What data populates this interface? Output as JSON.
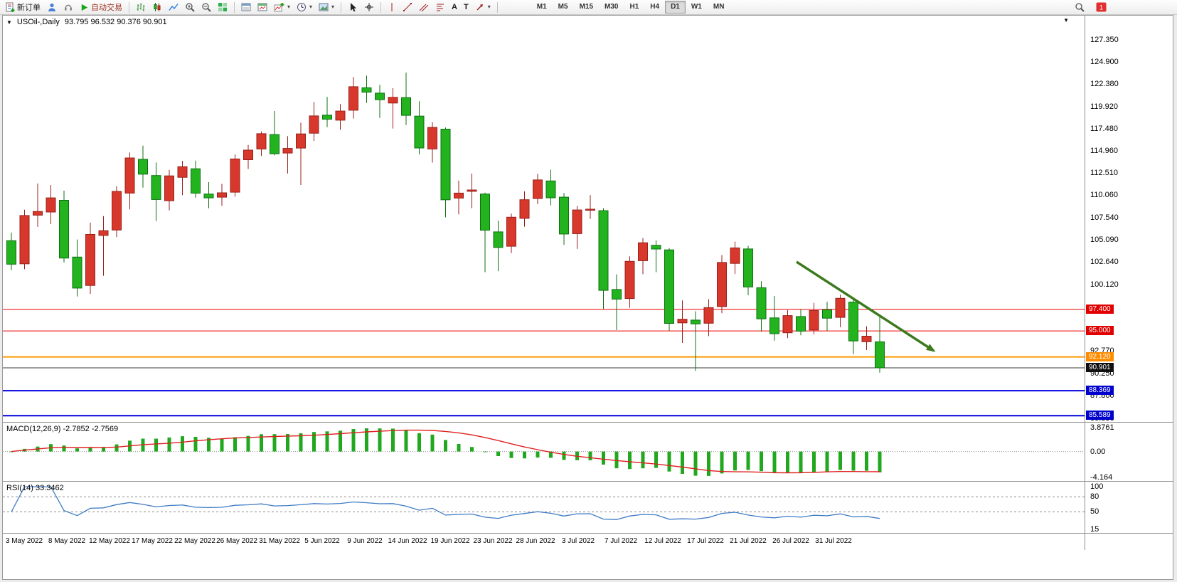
{
  "toolbar": {
    "new_order": "新订单",
    "autotrade": "自动交易",
    "text_tool_a": "A",
    "text_tool_t": "T",
    "timeframes": [
      "M1",
      "M5",
      "M15",
      "M30",
      "H1",
      "H4",
      "D1",
      "W1",
      "MN"
    ],
    "active_timeframe": "D1",
    "notification_count": "1"
  },
  "icons": {
    "dropdown": "▾",
    "collapse": "▼"
  },
  "chart": {
    "symbol_title": "USOil-,Daily",
    "ohlc_text": "93.795 96.532 90.376 90.901",
    "price_axis": {
      "ticks": [
        {
          "value": 127.35,
          "label": "127.350"
        },
        {
          "value": 124.9,
          "label": "124.900"
        },
        {
          "value": 122.38,
          "label": "122.380"
        },
        {
          "value": 119.92,
          "label": "119.920"
        },
        {
          "value": 117.48,
          "label": "117.480"
        },
        {
          "value": 114.96,
          "label": "114.960"
        },
        {
          "value": 112.51,
          "label": "112.510"
        },
        {
          "value": 110.06,
          "label": "110.060"
        },
        {
          "value": 107.54,
          "label": "107.540"
        },
        {
          "value": 105.09,
          "label": "105.090"
        },
        {
          "value": 102.64,
          "label": "102.640"
        },
        {
          "value": 100.12,
          "label": "100.120"
        },
        {
          "value": 92.77,
          "label": "92.770"
        },
        {
          "value": 90.25,
          "label": "90.250"
        },
        {
          "value": 87.8,
          "label": "87.800"
        },
        {
          "value": 85.33,
          "label": "85.330"
        }
      ]
    },
    "levels": [
      {
        "value": 97.4,
        "label": "97.400",
        "color": "#f20000",
        "badge": "#e00000",
        "width": 1
      },
      {
        "value": 95.0,
        "label": "95.000",
        "color": "#f20000",
        "badge": "#e00000",
        "width": 1
      },
      {
        "value": 92.12,
        "label": "92.120",
        "color": "#ff9a00",
        "badge": "#ff8c00",
        "width": 2
      },
      {
        "value": 90.901,
        "label": "90.901",
        "color": "#3c3c3c",
        "badge": "#101010",
        "width": 1
      },
      {
        "value": 88.369,
        "label": "88.369",
        "color": "#0000e0",
        "badge": "#0000cc",
        "width": 2
      },
      {
        "value": 85.589,
        "label": "85.589",
        "color": "#0000e0",
        "badge": "#0000cc",
        "width": 2
      }
    ],
    "arrow": {
      "from_bar": 59.7,
      "from_price": 102.7,
      "to_bar": 70.1,
      "to_price": 92.8,
      "color": "#3c7a1e"
    },
    "colors": {
      "bull": "#d8372c",
      "bull_dark": "#97211a",
      "bear": "#22b31f",
      "bear_dark": "#0e7010",
      "macd_bar": "#22a81f",
      "macd_signal": "#e02020",
      "rsi_line": "#3f7bc4"
    }
  },
  "macd_panel": {
    "label": "MACD(12,26,9) -2.7852 -2.7569",
    "params": {
      "fast": 12,
      "slow": 26,
      "signal": 9
    },
    "current_macd": -2.7852,
    "current_signal": -2.7569,
    "ylim": [
      -4.8,
      4.7
    ],
    "axis": [
      {
        "value": 3.8761,
        "label": "3.8761"
      },
      {
        "value": 0,
        "label": "0.00"
      },
      {
        "value": -4.164,
        "label": "-4.164"
      }
    ]
  },
  "rsi_panel": {
    "label": "RSI(14) 33.3462",
    "period": 14,
    "current": 33.3462,
    "ylim": [
      8,
      110
    ],
    "levels": [
      80,
      50
    ],
    "axis": [
      {
        "value": 100,
        "label": "100"
      },
      {
        "value": 80,
        "label": "80"
      },
      {
        "value": 50,
        "label": "50"
      },
      {
        "value": 15,
        "label": "15"
      }
    ]
  },
  "date_axis": {
    "labels": [
      "3 May 2022",
      "8 May 2022",
      "12 May 2022",
      "17 May 2022",
      "22 May 2022",
      "26 May 2022",
      "31 May 2022",
      "5 Jun 2022",
      "9 Jun 2022",
      "14 Jun 2022",
      "19 Jun 2022",
      "23 Jun 2022",
      "28 Jun 2022",
      "3 Jul 2022",
      "7 Jul 2022",
      "12 Jul 2022",
      "17 Jul 2022",
      "21 Jul 2022",
      "26 Jul 2022",
      "31 Jul 2022"
    ]
  },
  "chart_data": {
    "type": "candlestick",
    "symbol": "USOil",
    "timeframe": "Daily",
    "title": "USOil-,Daily",
    "ylim": [
      84.9,
      130.0
    ],
    "color_convention": "china (red = up, green = down)",
    "dates": [
      "2022-05-03",
      "2022-05-04",
      "2022-05-05",
      "2022-05-06",
      "2022-05-09",
      "2022-05-10",
      "2022-05-11",
      "2022-05-12",
      "2022-05-13",
      "2022-05-16",
      "2022-05-17",
      "2022-05-18",
      "2022-05-19",
      "2022-05-20",
      "2022-05-23",
      "2022-05-24",
      "2022-05-25",
      "2022-05-26",
      "2022-05-27",
      "2022-05-30",
      "2022-05-31",
      "2022-06-01",
      "2022-06-02",
      "2022-06-03",
      "2022-06-06",
      "2022-06-07",
      "2022-06-08",
      "2022-06-09",
      "2022-06-10",
      "2022-06-13",
      "2022-06-14",
      "2022-06-15",
      "2022-06-16",
      "2022-06-17",
      "2022-06-20",
      "2022-06-21",
      "2022-06-22",
      "2022-06-23",
      "2022-06-24",
      "2022-06-27",
      "2022-06-28",
      "2022-06-29",
      "2022-06-30",
      "2022-07-01",
      "2022-07-04",
      "2022-07-05",
      "2022-07-06",
      "2022-07-07",
      "2022-07-08",
      "2022-07-11",
      "2022-07-12",
      "2022-07-13",
      "2022-07-14",
      "2022-07-15",
      "2022-07-18",
      "2022-07-19",
      "2022-07-20",
      "2022-07-21",
      "2022-07-22",
      "2022-07-25",
      "2022-07-26",
      "2022-07-27",
      "2022-07-28",
      "2022-07-29",
      "2022-08-01",
      "2022-08-02",
      "2022-08-03"
    ],
    "ohlc": [
      [
        105.02,
        105.92,
        101.75,
        102.41
      ],
      [
        102.45,
        108.45,
        101.85,
        107.81
      ],
      [
        107.85,
        111.37,
        106.55,
        108.26
      ],
      [
        108.2,
        111.2,
        106.85,
        109.77
      ],
      [
        109.5,
        110.58,
        102.6,
        103.09
      ],
      [
        103.2,
        105.15,
        98.82,
        99.76
      ],
      [
        100.05,
        107.02,
        99.12,
        105.71
      ],
      [
        105.6,
        107.75,
        101.12,
        106.13
      ],
      [
        106.2,
        111.06,
        105.42,
        110.49
      ],
      [
        110.3,
        114.82,
        108.5,
        114.2
      ],
      [
        114.05,
        115.56,
        110.92,
        112.4
      ],
      [
        112.25,
        113.7,
        107.2,
        109.59
      ],
      [
        109.45,
        112.88,
        108.38,
        112.21
      ],
      [
        112.05,
        113.88,
        110.07,
        113.23
      ],
      [
        113.0,
        113.9,
        109.8,
        110.29
      ],
      [
        110.2,
        111.52,
        108.61,
        109.77
      ],
      [
        109.85,
        111.33,
        108.88,
        110.33
      ],
      [
        110.4,
        114.6,
        109.92,
        114.09
      ],
      [
        114.0,
        115.66,
        112.98,
        115.07
      ],
      [
        115.2,
        117.14,
        114.42,
        116.9
      ],
      [
        116.8,
        119.42,
        114.5,
        114.67
      ],
      [
        114.75,
        116.62,
        112.47,
        115.26
      ],
      [
        115.3,
        118.12,
        111.2,
        116.87
      ],
      [
        116.95,
        120.42,
        116.1,
        118.87
      ],
      [
        118.95,
        120.99,
        117.62,
        118.5
      ],
      [
        118.4,
        120.19,
        117.32,
        119.41
      ],
      [
        119.5,
        123.18,
        118.58,
        122.11
      ],
      [
        122.0,
        123.34,
        120.32,
        121.51
      ],
      [
        121.4,
        122.32,
        118.65,
        120.67
      ],
      [
        120.3,
        121.95,
        117.47,
        120.93
      ],
      [
        120.9,
        123.68,
        117.86,
        118.93
      ],
      [
        118.85,
        120.5,
        114.6,
        115.31
      ],
      [
        115.2,
        118.17,
        113.68,
        117.59
      ],
      [
        117.4,
        117.58,
        107.61,
        109.56
      ],
      [
        109.75,
        111.7,
        107.95,
        110.3
      ],
      [
        110.5,
        112.47,
        108.63,
        110.65
      ],
      [
        110.2,
        110.36,
        101.53,
        106.19
      ],
      [
        106.0,
        107.25,
        101.62,
        104.27
      ],
      [
        104.4,
        108.02,
        103.64,
        107.62
      ],
      [
        107.5,
        110.5,
        106.57,
        109.57
      ],
      [
        109.7,
        112.45,
        109.07,
        111.76
      ],
      [
        111.65,
        112.9,
        108.94,
        109.78
      ],
      [
        109.85,
        110.32,
        104.56,
        105.76
      ],
      [
        105.8,
        108.88,
        104.1,
        108.43
      ],
      [
        108.4,
        110.09,
        107.43,
        108.52
      ],
      [
        108.35,
        108.61,
        97.43,
        99.5
      ],
      [
        99.6,
        101.28,
        95.1,
        98.53
      ],
      [
        98.6,
        103.28,
        97.57,
        102.73
      ],
      [
        102.8,
        105.32,
        101.29,
        104.79
      ],
      [
        104.5,
        105.06,
        101.52,
        104.09
      ],
      [
        104.0,
        104.2,
        95.04,
        95.84
      ],
      [
        95.9,
        98.39,
        93.67,
        96.3
      ],
      [
        96.2,
        97.18,
        90.56,
        95.78
      ],
      [
        95.85,
        98.53,
        94.42,
        97.59
      ],
      [
        97.7,
        103.42,
        96.97,
        102.6
      ],
      [
        102.5,
        104.92,
        101.32,
        104.22
      ],
      [
        104.1,
        104.45,
        98.97,
        99.88
      ],
      [
        99.8,
        100.51,
        94.92,
        96.35
      ],
      [
        96.45,
        98.87,
        93.92,
        94.7
      ],
      [
        94.8,
        97.32,
        94.2,
        96.7
      ],
      [
        96.6,
        97.38,
        94.51,
        94.98
      ],
      [
        95.1,
        98.12,
        94.62,
        97.26
      ],
      [
        97.35,
        98.24,
        95.01,
        96.42
      ],
      [
        96.5,
        99.02,
        95.41,
        98.62
      ],
      [
        98.2,
        98.66,
        92.42,
        93.89
      ],
      [
        93.8,
        95.52,
        92.88,
        94.42
      ],
      [
        93.795,
        96.532,
        90.376,
        90.901
      ]
    ],
    "indicators": [
      {
        "type": "macd",
        "fast": 12,
        "slow": 26,
        "signal": 9,
        "current_macd": -2.7852,
        "current_signal": -2.7569
      },
      {
        "type": "rsi",
        "period": 14,
        "current": 33.3462
      }
    ]
  }
}
